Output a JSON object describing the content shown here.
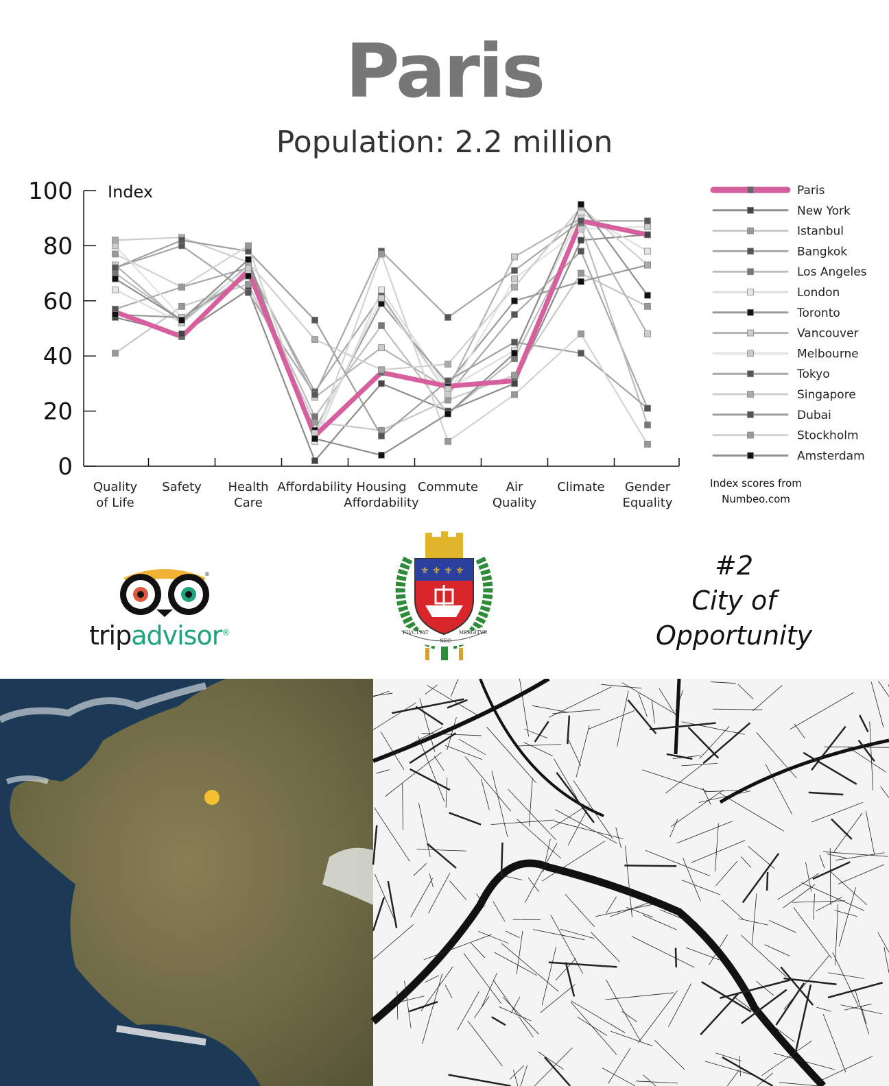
{
  "title": "Paris",
  "subtitle": "Population: 2.2 million",
  "chart_data": {
    "type": "line",
    "ylabel": "Index",
    "ylim": [
      0,
      100
    ],
    "yticks": [
      0,
      20,
      40,
      60,
      80,
      100
    ],
    "categories": [
      "Quality\nof Life",
      "Safety",
      "Health\nCare",
      "Affordability",
      "Housing\nAffordability",
      "Commute",
      "Air\nQuality",
      "Climate",
      "Gender\nEquality"
    ],
    "grid": false,
    "legend_position": "right",
    "source_note": "Index scores from\nNumbeo.com",
    "highlight_color": "#d65f9e",
    "series": [
      {
        "name": "Paris",
        "values": [
          56,
          47,
          71,
          11,
          34,
          29,
          31,
          89,
          84
        ],
        "color": "#d65f9e",
        "marker": "#666666",
        "highlight": true
      },
      {
        "name": "New York",
        "values": [
          54,
          48,
          64,
          2,
          30,
          20,
          30,
          82,
          84
        ],
        "color": "#8c8c8c",
        "marker": "#444444"
      },
      {
        "name": "Istanbul",
        "values": [
          41,
          58,
          66,
          16,
          13,
          24,
          33,
          70,
          58
        ],
        "color": "#c8c8c8",
        "marker": "#999999"
      },
      {
        "name": "Bangkok",
        "values": [
          57,
          65,
          72,
          27,
          62,
          26,
          55,
          78,
          21
        ],
        "color": "#a8a8a8",
        "marker": "#555555"
      },
      {
        "name": "Los Angeles",
        "values": [
          70,
          53,
          69,
          18,
          51,
          19,
          39,
          87,
          15
        ],
        "color": "#bdbdbd",
        "marker": "#777777"
      },
      {
        "name": "London",
        "values": [
          64,
          52,
          71,
          9,
          64,
          28,
          42,
          92,
          78
        ],
        "color": "#dddddd",
        "marker": "#e6e6e6"
      },
      {
        "name": "Toronto",
        "values": [
          55,
          54,
          69,
          13,
          59,
          30,
          60,
          67,
          73
        ],
        "color": "#9a9a9a",
        "marker": "#111111"
      },
      {
        "name": "Vancouver",
        "values": [
          73,
          52,
          73,
          25,
          43,
          28,
          76,
          90,
          48
        ],
        "color": "#b3b3b3",
        "marker": "#cccccc"
      },
      {
        "name": "Melbourne",
        "values": [
          80,
          54,
          72,
          12,
          61,
          26,
          68,
          86,
          87
        ],
        "color": "#e2e2e2",
        "marker": "#cccccc"
      },
      {
        "name": "Tokyo",
        "values": [
          72,
          80,
          63,
          26,
          78,
          54,
          71,
          89,
          89
        ],
        "color": "#a8a8a8",
        "marker": "#555555"
      },
      {
        "name": "Singapore",
        "values": [
          82,
          83,
          74,
          46,
          35,
          37,
          65,
          94,
          73
        ],
        "color": "#cfcfcf",
        "marker": "#aaaaaa"
      },
      {
        "name": "Dubai",
        "values": [
          72,
          82,
          78,
          53,
          11,
          31,
          45,
          41,
          21
        ],
        "color": "#a0a0a0",
        "marker": "#555555"
      },
      {
        "name": "Stockholm",
        "values": [
          77,
          65,
          80,
          10,
          77,
          9,
          26,
          48,
          8
        ],
        "color": "#d3d3d3",
        "marker": "#999999"
      },
      {
        "name": "Amsterdam",
        "values": [
          68,
          53,
          75,
          10,
          4,
          19,
          41,
          95,
          62
        ],
        "color": "#8f8f8f",
        "marker": "#111111"
      }
    ]
  },
  "logos": {
    "tripadvisor_trip": "trip",
    "tripadvisor_advisor": "advisor",
    "tripadvisor_reg": "®",
    "owl_icon": "tripadvisor-owl-icon",
    "coat_of_arms_icon": "paris-coat-of-arms-icon",
    "motto_left": "FLVCTVAT",
    "motto_center": "NEC",
    "motto_right": "MERGITVR"
  },
  "ranking": {
    "rank": "#2",
    "line1": "City of",
    "line2": "Opportunity"
  },
  "maps": {
    "satellite_icon": "satellite-map-france",
    "street_icon": "street-map-paris",
    "marker_color": "#f5c030"
  }
}
